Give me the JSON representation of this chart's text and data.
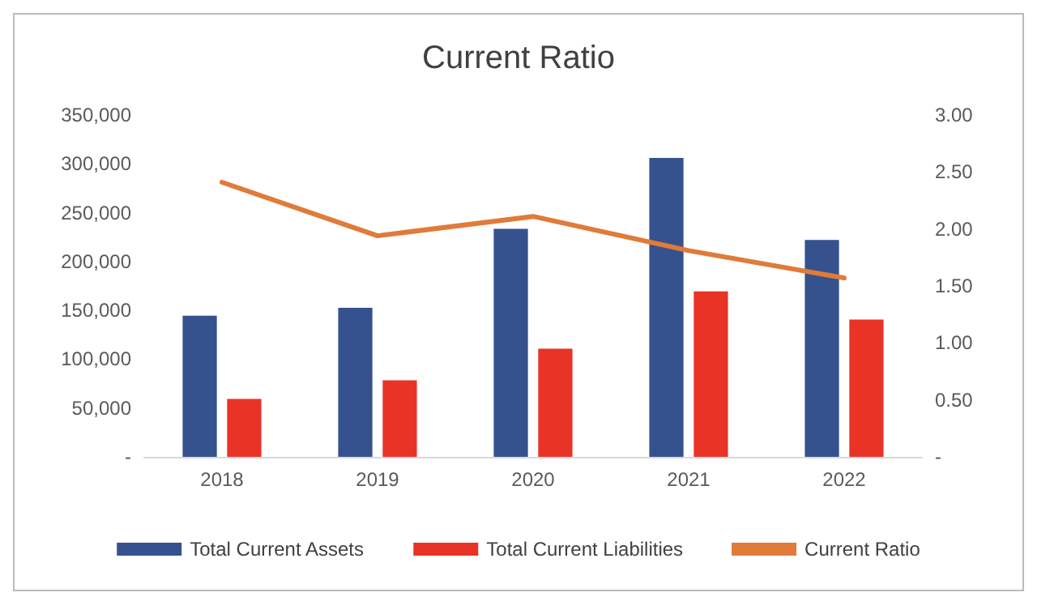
{
  "chart_data": {
    "type": "bar",
    "title": "Current Ratio",
    "categories": [
      "2018",
      "2019",
      "2020",
      "2021",
      "2022"
    ],
    "series": [
      {
        "name": "Total Current Assets",
        "color": "#35528f",
        "values": [
          144500,
          152700,
          233500,
          306000,
          222100
        ]
      },
      {
        "name": "Total Current Liabilities",
        "color": "#e83326",
        "values": [
          59200,
          78300,
          110700,
          169300,
          140600
        ]
      },
      {
        "name": "Current Ratio",
        "type": "line",
        "axis": "y2",
        "color": "#e07b39",
        "values": [
          2.41,
          1.94,
          2.11,
          1.81,
          1.57
        ]
      }
    ],
    "ylim": [
      0,
      350000
    ],
    "yticks": [
      {
        "value": 0,
        "label": "-"
      },
      {
        "value": 50000,
        "label": "50,000"
      },
      {
        "value": 100000,
        "label": "100,000"
      },
      {
        "value": 150000,
        "label": "150,000"
      },
      {
        "value": 200000,
        "label": "200,000"
      },
      {
        "value": 250000,
        "label": "250,000"
      },
      {
        "value": 300000,
        "label": "300,000"
      },
      {
        "value": 350000,
        "label": "350,000"
      }
    ],
    "y2lim": [
      0,
      3
    ],
    "y2ticks": [
      {
        "value": 0,
        "label": "-"
      },
      {
        "value": 0.5,
        "label": "0.50"
      },
      {
        "value": 1,
        "label": "1.00"
      },
      {
        "value": 1.5,
        "label": "1.50"
      },
      {
        "value": 2,
        "label": "2.00"
      },
      {
        "value": 2.5,
        "label": "2.50"
      },
      {
        "value": 3,
        "label": "3.00"
      }
    ],
    "grid": false,
    "legend": "bottom",
    "marker": "none"
  }
}
